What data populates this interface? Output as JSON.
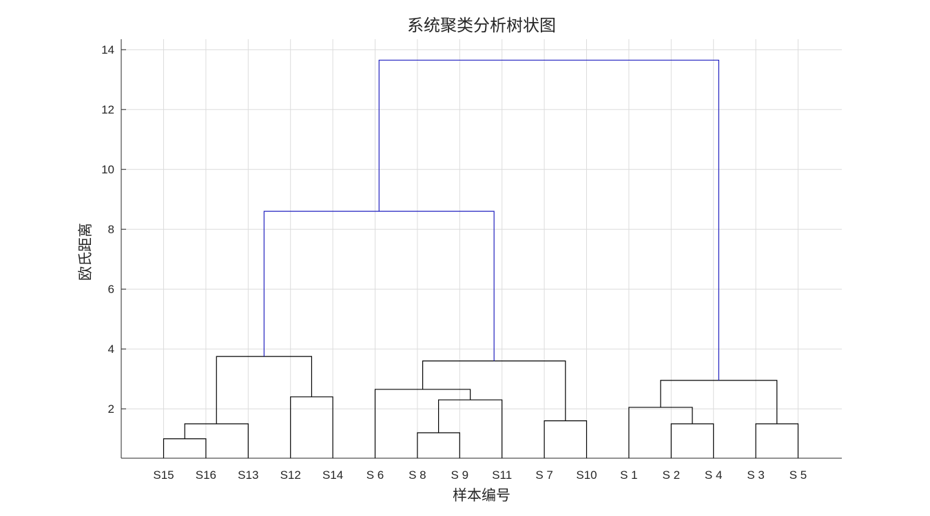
{
  "chart_data": {
    "type": "dendrogram",
    "title": "系统聚类分析树状图",
    "xlabel": "样本编号",
    "ylabel": "欧氏距离",
    "ylim": [
      0.35,
      14.35
    ],
    "yticks": [
      2,
      4,
      6,
      8,
      10,
      12,
      14
    ],
    "grid": true,
    "leaf_order": [
      "S15",
      "S16",
      "S13",
      "S12",
      "S14",
      "S 6",
      "S 8",
      "S 9",
      "S11",
      "S 7",
      "S10",
      "S 1",
      "S 2",
      "S 4",
      "S 3",
      "S 5"
    ],
    "colors": {
      "above_threshold": "#1f1fbf",
      "below_threshold": "#000000",
      "grid": "#dcdcdc",
      "axis": "#262626"
    },
    "merges": [
      {
        "left": "S15",
        "right": "S16",
        "height": 1.0,
        "color": "black"
      },
      {
        "left": "S 8",
        "right": "S 9",
        "height": 1.2,
        "color": "black"
      },
      {
        "left": "S 2",
        "right": "S 4",
        "height": 1.5,
        "color": "black"
      },
      {
        "left": "S 3",
        "right": "S 5",
        "height": 1.5,
        "color": "black"
      },
      {
        "left": "(S15,S16)",
        "right": "S13",
        "height": 1.5,
        "color": "black"
      },
      {
        "left": "S 7",
        "right": "S10",
        "height": 1.6,
        "color": "black"
      },
      {
        "left": "S 1",
        "right": "(S 2,S 4)",
        "height": 2.05,
        "color": "black"
      },
      {
        "left": "(S 8,S 9)",
        "right": "S11",
        "height": 2.3,
        "color": "black"
      },
      {
        "left": "S12",
        "right": "S14",
        "height": 2.4,
        "color": "black"
      },
      {
        "left": "S 6",
        "right": "(S 8,S 9,S11)",
        "height": 2.65,
        "color": "black"
      },
      {
        "left": "(S 1,S 2,S 4)",
        "right": "(S 3,S 5)",
        "height": 2.95,
        "color": "black"
      },
      {
        "left": "(S15,S16,S13)",
        "right": "(S12,S14)",
        "height": 3.75,
        "color": "black"
      },
      {
        "left": "(S 6,S 8,S 9,S11)",
        "right": "(S 7,S10)",
        "height": 3.6,
        "color": "black"
      },
      {
        "left": "(S15,S16,S13,S12,S14)",
        "right": "(S 6,S 8,S 9,S11,S 7,S10)",
        "height": 8.6,
        "color": "blue"
      },
      {
        "left": "(S15..S10)",
        "right": "(S 1,S 2,S 4,S 3,S 5)",
        "height": 13.65,
        "color": "blue"
      }
    ]
  }
}
